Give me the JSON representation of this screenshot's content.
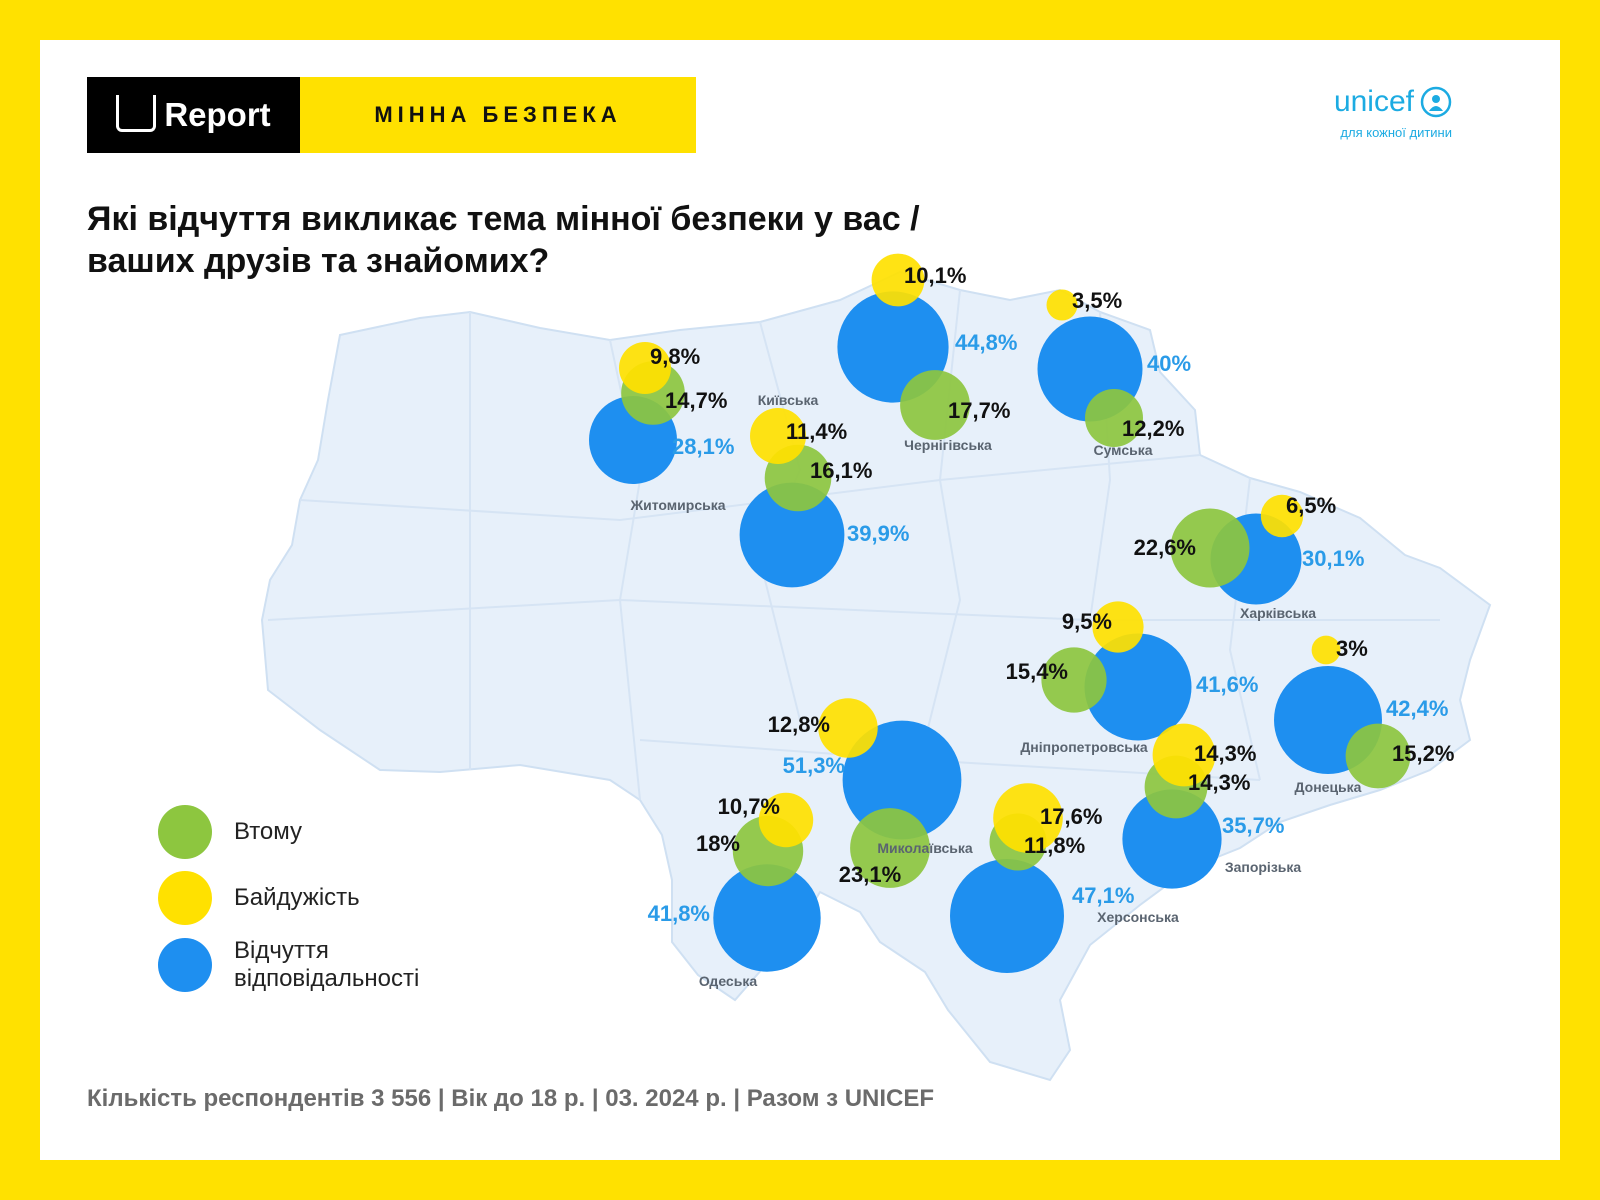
{
  "header": {
    "logo_text": "Report",
    "topic": "МІННА БЕЗПЕКА"
  },
  "partner": {
    "name": "unicef",
    "tagline": "для кожної дитини",
    "emblem_icon": "unicef-emblem-icon"
  },
  "question": "Які відчуття викликає тема мінної безпеки у вас / ваших друзів та знайомих?",
  "legend": [
    {
      "key": "fatigue",
      "label": "Втому",
      "color": "#8DC63F"
    },
    {
      "key": "indifference",
      "label": "Байдужість",
      "color": "#FFE100"
    },
    {
      "key": "responsibility",
      "label": "Відчуття відповідальності",
      "color": "#1E8FF0"
    }
  ],
  "colors": {
    "fatigue": "#8DC63F",
    "indifference": "#FFE100",
    "responsibility": "#1E8FF0",
    "map_fill": "#E7F0FA",
    "map_border": "#CFE0F2"
  },
  "regions": [
    {
      "name": "Житомирська",
      "fatigue": "14,7%",
      "indifference": "9,8%",
      "responsibility": "28,1%"
    },
    {
      "name": "Київська",
      "fatigue": "16,1%",
      "indifference": "11,4%",
      "responsibility": "39,9%"
    },
    {
      "name": "Чернігівська",
      "fatigue": "17,7%",
      "indifference": "10,1%",
      "responsibility": "44,8%"
    },
    {
      "name": "Сумська",
      "fatigue": "12,2%",
      "indifference": "3,5%",
      "responsibility": "40%"
    },
    {
      "name": "Харківська",
      "fatigue": "22,6%",
      "indifference": "6,5%",
      "responsibility": "30,1%"
    },
    {
      "name": "Дніпропетровська",
      "fatigue": "15,4%",
      "indifference": "9,5%",
      "responsibility": "41,6%"
    },
    {
      "name": "Донецька",
      "fatigue": "15,2%",
      "indifference": "3%",
      "responsibility": "42,4%"
    },
    {
      "name": "Запорізька",
      "fatigue": "14,3%",
      "indifference": "14,3%",
      "responsibility": "35,7%"
    },
    {
      "name": "Миколаївська",
      "fatigue": "23,1%",
      "indifference": "12,8%",
      "responsibility": "51,3%"
    },
    {
      "name": "Херсонська",
      "fatigue": "11,8%",
      "indifference": "17,6%",
      "responsibility": "47,1%"
    },
    {
      "name": "Одеська",
      "fatigue": "18%",
      "indifference": "10,7%",
      "responsibility": "41,8%"
    }
  ],
  "footer": "Кількість респондентів 3 556 | Вік до 18 р. | 03. 2024 р. | Разом з UNICEF"
}
